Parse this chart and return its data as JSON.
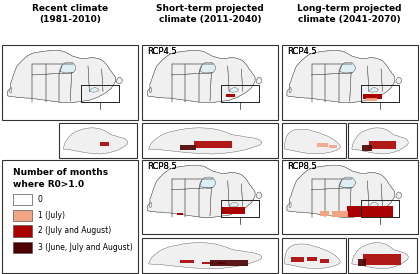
{
  "title_col1": "Recent climate\n(1981-2010)",
  "title_col2": "Short-term projected\nclimate (2011-2040)",
  "title_col3": "Long-term projected\nclimate (2041-2070)",
  "label_rcp45": "RCP4.5",
  "label_rcp85": "RCP8.5",
  "legend_title": "Number of months\nwhere R0>1.0",
  "legend_items": [
    {
      "label": "0",
      "color": "#ffffff"
    },
    {
      "label": "1 (July)",
      "color": "#f4a582"
    },
    {
      "label": "2 (July and August)",
      "color": "#aa0000"
    },
    {
      "label": "3 (June, July and August)",
      "color": "#4a0000"
    }
  ],
  "canada_fill": "#f0f0f0",
  "canada_edge": "#555555",
  "panel_bg": "#ffffff",
  "border_color": "#333333",
  "fig_bg": "#ffffff",
  "title_fontsize": 6.5,
  "label_fontsize": 6,
  "legend_title_fontsize": 6.5,
  "legend_item_fontsize": 5.5,
  "water_color": "#d0e8f0"
}
